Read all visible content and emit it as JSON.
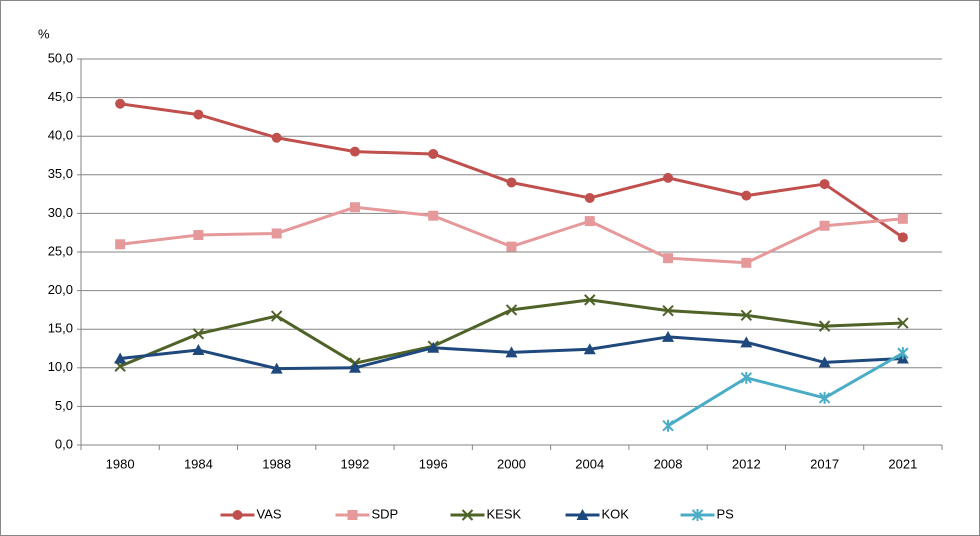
{
  "chart_data": {
    "type": "line",
    "y_label": "%",
    "categories": [
      "1980",
      "1984",
      "1988",
      "1992",
      "1996",
      "2000",
      "2004",
      "2008",
      "2012",
      "2017",
      "2021"
    ],
    "series": [
      {
        "name": "VAS",
        "color": "#c0504d",
        "marker": "circle",
        "values": [
          44.2,
          42.8,
          39.8,
          38.0,
          37.7,
          34.0,
          32.0,
          34.6,
          32.3,
          33.8,
          26.9
        ]
      },
      {
        "name": "SDP",
        "color": "#e6999a",
        "marker": "square",
        "values": [
          26.0,
          27.2,
          27.4,
          30.8,
          29.7,
          25.7,
          29.0,
          24.2,
          23.6,
          28.4,
          29.3
        ]
      },
      {
        "name": "KESK",
        "color": "#4f6228",
        "marker": "x",
        "values": [
          10.2,
          14.4,
          16.7,
          10.6,
          12.8,
          17.5,
          18.8,
          17.4,
          16.8,
          15.4,
          15.8
        ]
      },
      {
        "name": "KOK",
        "color": "#1f497d",
        "marker": "triangle",
        "values": [
          11.2,
          12.3,
          9.9,
          10.0,
          12.6,
          12.0,
          12.4,
          14.0,
          13.3,
          10.7,
          11.2
        ]
      },
      {
        "name": "PS",
        "color": "#4bacc6",
        "marker": "asterisk",
        "values": [
          null,
          null,
          null,
          null,
          null,
          null,
          null,
          2.5,
          8.7,
          6.1,
          11.9
        ]
      }
    ],
    "ylim": [
      0,
      50
    ],
    "yticks": [
      {
        "value": 0,
        "label": "0,0"
      },
      {
        "value": 5,
        "label": "5,0"
      },
      {
        "value": 10,
        "label": "10,0"
      },
      {
        "value": 15,
        "label": "15,0"
      },
      {
        "value": 20,
        "label": "20,0"
      },
      {
        "value": 25,
        "label": "25,0"
      },
      {
        "value": 30,
        "label": "30,0"
      },
      {
        "value": 35,
        "label": "35,0"
      },
      {
        "value": 40,
        "label": "40,0"
      },
      {
        "value": 45,
        "label": "45,0"
      },
      {
        "value": 50,
        "label": "50,0"
      }
    ],
    "grid": true,
    "legend": "bottom"
  }
}
